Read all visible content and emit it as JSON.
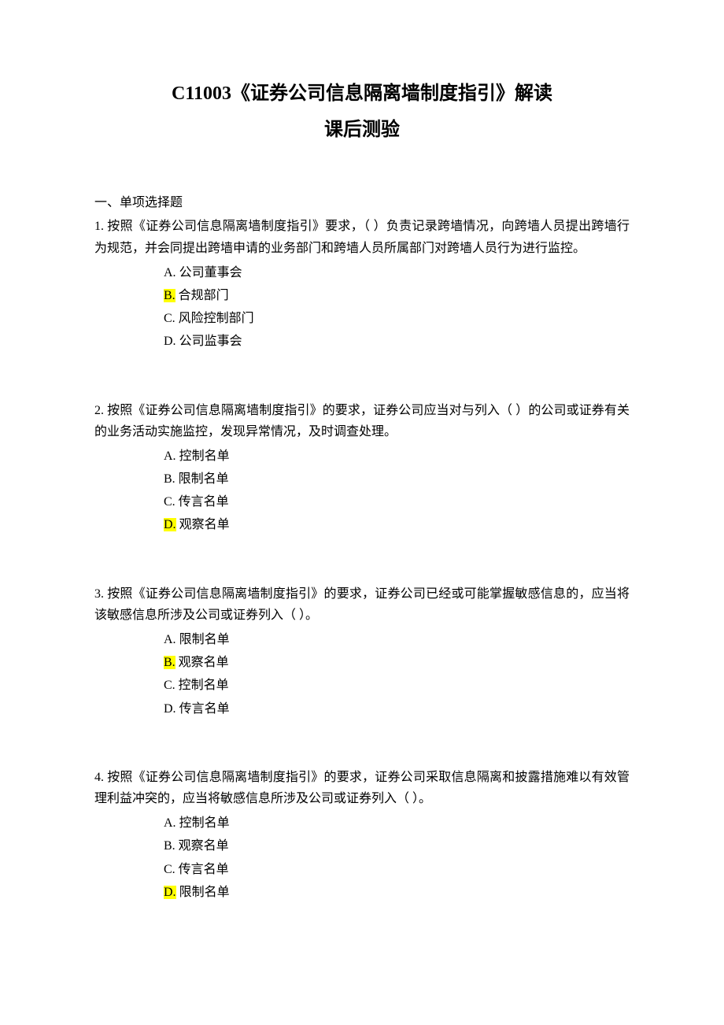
{
  "title": "C11003《证券公司信息隔离墙制度指引》解读",
  "subtitle": "课后测验",
  "section_heading": "一、单项选择题",
  "highlight_color": "#ffff00",
  "background_color": "#ffffff",
  "text_color": "#000000",
  "title_fontsize": 24,
  "body_fontsize": 16,
  "questions": [
    {
      "stem": "1. 按照《证券公司信息隔离墙制度指引》要求，（ ）负责记录跨墙情况，向跨墙人员提出跨墙行为规范，并会同提出跨墙申请的业务部门和跨墙人员所属部门对跨墙人员行为进行监控。",
      "options": [
        {
          "letter": "A.",
          "text": " 公司董事会",
          "highlighted": false
        },
        {
          "letter": "B.",
          "text": " 合规部门",
          "highlighted": true
        },
        {
          "letter": "C.",
          "text": " 风险控制部门",
          "highlighted": false
        },
        {
          "letter": "D.",
          "text": " 公司监事会",
          "highlighted": false
        }
      ]
    },
    {
      "stem": "2. 按照《证券公司信息隔离墙制度指引》的要求，证券公司应当对与列入（ ）的公司或证券有关的业务活动实施监控，发现异常情况，及时调查处理。",
      "options": [
        {
          "letter": "A.",
          "text": " 控制名单",
          "highlighted": false
        },
        {
          "letter": "B.",
          "text": " 限制名单",
          "highlighted": false
        },
        {
          "letter": "C.",
          "text": " 传言名单",
          "highlighted": false
        },
        {
          "letter": "D.",
          "text": " 观察名单",
          "highlighted": true
        }
      ]
    },
    {
      "stem": "3. 按照《证券公司信息隔离墙制度指引》的要求，证券公司已经或可能掌握敏感信息的，应当将该敏感信息所涉及公司或证券列入（ ）。",
      "options": [
        {
          "letter": "A.",
          "text": " 限制名单",
          "highlighted": false
        },
        {
          "letter": "B.",
          "text": " 观察名单",
          "highlighted": true
        },
        {
          "letter": "C.",
          "text": " 控制名单",
          "highlighted": false
        },
        {
          "letter": "D.",
          "text": " 传言名单",
          "highlighted": false
        }
      ]
    },
    {
      "stem": "4. 按照《证券公司信息隔离墙制度指引》的要求，证券公司采取信息隔离和披露措施难以有效管理利益冲突的，应当将敏感信息所涉及公司或证券列入（ ）。",
      "options": [
        {
          "letter": "A.",
          "text": " 控制名单",
          "highlighted": false
        },
        {
          "letter": "B.",
          "text": " 观察名单",
          "highlighted": false
        },
        {
          "letter": "C.",
          "text": " 传言名单",
          "highlighted": false
        },
        {
          "letter": "D.",
          "text": " 限制名单",
          "highlighted": true
        }
      ]
    }
  ]
}
